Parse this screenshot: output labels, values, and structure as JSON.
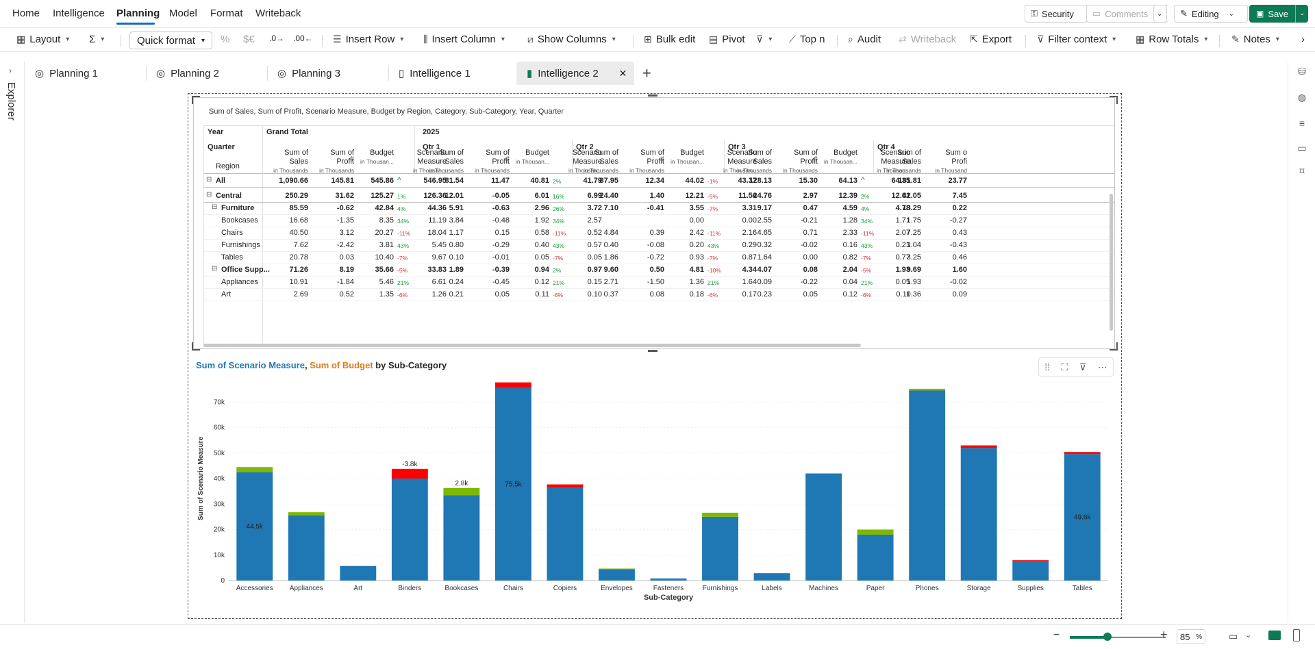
{
  "menu": {
    "items": [
      "Home",
      "Intelligence",
      "Planning",
      "Model",
      "Format",
      "Writeback"
    ],
    "active": "Planning",
    "security": "Security",
    "comments": "Comments",
    "editing": "Editing",
    "save": "Save"
  },
  "toolbar": {
    "layout": "Layout",
    "sigma": "Σ",
    "quick_format": "Quick format",
    "percent": "%",
    "currency": "$€",
    "insert_row": "Insert Row",
    "insert_column": "Insert Column",
    "show_columns": "Show Columns",
    "bulk_edit": "Bulk edit",
    "pivot": "Pivot",
    "top_n": "Top n",
    "audit": "Audit",
    "writeback": "Writeback",
    "export": "Export",
    "filter_context": "Filter context",
    "row_totals": "Row Totals",
    "notes": "Notes"
  },
  "tabs": [
    {
      "label": "Planning 1",
      "icon": "target-icon"
    },
    {
      "label": "Planning 2",
      "icon": "target-icon"
    },
    {
      "label": "Planning 3",
      "icon": "target-icon"
    },
    {
      "label": "Intelligence 1",
      "icon": "document-icon"
    },
    {
      "label": "Intelligence 2",
      "icon": "document-icon",
      "active": true
    }
  ],
  "explorer_label": "Explorer",
  "table": {
    "title": "Sum of Sales, Sum of Profit, Scenario Measure, Budget by Region, Category, Sub-Category, Year, Quarter",
    "year_label": "Year",
    "quarter_label": "Quarter",
    "region_label": "Region",
    "grand_total": "Grand Total",
    "year_value": "2025",
    "quarters": [
      "Qtr 1",
      "Qtr 2",
      "Qtr 3",
      "Qtr 4"
    ],
    "measure_headers": [
      {
        "l1": "Sum of",
        "l2": "Sales",
        "sub": "in Thousands"
      },
      {
        "l1": "Sum of",
        "l2": "Profit",
        "sub": "in Thousands"
      },
      {
        "l1": "",
        "l2": "Budget",
        "sub": "in Thousan..."
      },
      {
        "l1": "Scenario",
        "l2": "Measure",
        "sub": "in Thousan..."
      }
    ],
    "q4_headers": [
      {
        "l1": "Sum of",
        "l2": "Sales",
        "sub": "in Thousands"
      },
      {
        "l1": "Sum o",
        "l2": "Profi",
        "sub": "in Thousand"
      }
    ],
    "rows": [
      {
        "label": "All",
        "level": 0,
        "bold": true,
        "toggle": "⊟",
        "vals": [
          [
            "1,090.66",
            "145.81",
            "545.86",
            "^",
            "546.95"
          ],
          [
            "81.54",
            "11.47",
            "40.81",
            "2%",
            "41.79"
          ],
          [
            "87.95",
            "12.34",
            "44.02",
            "-1%",
            "43.37"
          ],
          [
            "128.13",
            "15.30",
            "64.13",
            "^",
            "64.35"
          ],
          [
            "181.81",
            "23.77"
          ]
        ]
      },
      {
        "label": "Central",
        "level": 0,
        "bold": true,
        "toggle": "⊟",
        "vals": [
          [
            "250.29",
            "31.62",
            "125.27",
            "1%",
            "126.36"
          ],
          [
            "12.01",
            "-0.05",
            "6.01",
            "16%",
            "6.99"
          ],
          [
            "24.40",
            "1.40",
            "12.21",
            "-5%",
            "11.56"
          ],
          [
            "24.76",
            "2.97",
            "12.39",
            "2%",
            "12.61"
          ],
          [
            "42.05",
            "7.45"
          ]
        ]
      },
      {
        "label": "Furniture",
        "level": 1,
        "bold": true,
        "toggle": "⊟",
        "vals": [
          [
            "85.59",
            "-0.62",
            "42.84",
            "4%",
            "44.36"
          ],
          [
            "5.91",
            "-0.63",
            "2.96",
            "26%",
            "3.72"
          ],
          [
            "7.10",
            "-0.41",
            "3.55",
            "-7%",
            "3.31"
          ],
          [
            "9.17",
            "0.47",
            "4.59",
            "4%",
            "4.78"
          ],
          [
            "13.29",
            "0.22"
          ]
        ]
      },
      {
        "label": "Bookcases",
        "level": 2,
        "bold": false,
        "toggle": "",
        "vals": [
          [
            "16.68",
            "-1.35",
            "8.35",
            "34%",
            "11.19"
          ],
          [
            "3.84",
            "-0.48",
            "1.92",
            "34%",
            "2.57"
          ],
          [
            "",
            "",
            "0.00",
            "",
            "0.00"
          ],
          [
            "2.55",
            "-0.21",
            "1.28",
            "34%",
            "1.71"
          ],
          [
            "1.75",
            "-0.27"
          ]
        ]
      },
      {
        "label": "Chairs",
        "level": 2,
        "bold": false,
        "toggle": "",
        "vals": [
          [
            "40.50",
            "3.12",
            "20.27",
            "-11%",
            "18.04"
          ],
          [
            "1.17",
            "0.15",
            "0.58",
            "-11%",
            "0.52"
          ],
          [
            "4.84",
            "0.39",
            "2.42",
            "-11%",
            "2.16"
          ],
          [
            "4.65",
            "0.71",
            "2.33",
            "-11%",
            "2.07"
          ],
          [
            "7.25",
            "0.43"
          ]
        ]
      },
      {
        "label": "Furnishings",
        "level": 2,
        "bold": false,
        "toggle": "",
        "vals": [
          [
            "7.62",
            "-2.42",
            "3.81",
            "43%",
            "5.45"
          ],
          [
            "0.80",
            "-0.29",
            "0.40",
            "43%",
            "0.57"
          ],
          [
            "0.40",
            "-0.08",
            "0.20",
            "43%",
            "0.29"
          ],
          [
            "0.32",
            "-0.02",
            "0.16",
            "43%",
            "0.23"
          ],
          [
            "1.04",
            "-0.43"
          ]
        ]
      },
      {
        "label": "Tables",
        "level": 2,
        "bold": false,
        "toggle": "",
        "vals": [
          [
            "20.78",
            "0.03",
            "10.40",
            "-7%",
            "9.67"
          ],
          [
            "0.10",
            "-0.01",
            "0.05",
            "-7%",
            "0.05"
          ],
          [
            "1.86",
            "-0.72",
            "0.93",
            "-7%",
            "0.87"
          ],
          [
            "1.64",
            "0.00",
            "0.82",
            "-7%",
            "0.77"
          ],
          [
            "3.25",
            "0.46"
          ]
        ]
      },
      {
        "label": "Office Supp...",
        "level": 1,
        "bold": true,
        "toggle": "⊟",
        "vals": [
          [
            "71.26",
            "8.19",
            "35.66",
            "-5%",
            "33.83"
          ],
          [
            "1.89",
            "-0.39",
            "0.94",
            "2%",
            "0.97"
          ],
          [
            "9.60",
            "0.50",
            "4.81",
            "-10%",
            "4.34"
          ],
          [
            "4.07",
            "0.08",
            "2.04",
            "-5%",
            "1.93"
          ],
          [
            "9.69",
            "1.60"
          ]
        ]
      },
      {
        "label": "Appliances",
        "level": 2,
        "bold": false,
        "toggle": "",
        "vals": [
          [
            "10.91",
            "-1.84",
            "5.46",
            "21%",
            "6.61"
          ],
          [
            "0.24",
            "-0.45",
            "0.12",
            "21%",
            "0.15"
          ],
          [
            "2.71",
            "-1.50",
            "1.36",
            "21%",
            "1.64"
          ],
          [
            "0.09",
            "-0.22",
            "0.04",
            "21%",
            "0.05"
          ],
          [
            "1.93",
            "-0.02"
          ]
        ]
      },
      {
        "label": "Art",
        "level": 2,
        "bold": false,
        "toggle": "",
        "vals": [
          [
            "2.69",
            "0.52",
            "1.35",
            "-6%",
            "1.26"
          ],
          [
            "0.21",
            "0.05",
            "0.11",
            "-6%",
            "0.10"
          ],
          [
            "0.37",
            "0.08",
            "0.18",
            "-6%",
            "0.17"
          ],
          [
            "0.23",
            "0.05",
            "0.12",
            "-6%",
            "0.11"
          ],
          [
            "0.36",
            "0.09"
          ]
        ]
      }
    ]
  },
  "chart_data": {
    "type": "bar",
    "title_parts": [
      {
        "text": "Sum of Scenario Measure",
        "color": "#1f77b4"
      },
      {
        "text": ", ",
        "color": "#242424"
      },
      {
        "text": "Sum of Budget",
        "color": "#e07b1a"
      },
      {
        "text": " by Sub-Category",
        "color": "#242424"
      }
    ],
    "xlabel": "Sub-Category",
    "ylabel": "Sum of Scenario Measure",
    "ylim": [
      0,
      80000
    ],
    "yticks": [
      0,
      10000,
      20000,
      30000,
      40000,
      50000,
      60000,
      70000
    ],
    "ytick_labels": [
      "0",
      "10k",
      "20k",
      "30k",
      "40k",
      "50k",
      "60k",
      "70k"
    ],
    "categories": [
      "Accessories",
      "Appliances",
      "Art",
      "Binders",
      "Bookcases",
      "Chairs",
      "Copiers",
      "Envelopes",
      "Fasteners",
      "Furnishings",
      "Labels",
      "Machines",
      "Paper",
      "Phones",
      "Storage",
      "Supplies",
      "Tables"
    ],
    "base": [
      42500,
      25500,
      5700,
      40000,
      33500,
      75500,
      36500,
      4400,
      800,
      25000,
      2900,
      42000,
      18000,
      74500,
      52000,
      7600,
      49600
    ],
    "delta": [
      2000,
      1300,
      0,
      -3800,
      2800,
      -2200,
      -1200,
      300,
      0,
      1600,
      0,
      0,
      2000,
      700,
      -1000,
      -400,
      -800
    ],
    "data_labels": [
      {
        "index": 0,
        "text": "44.5k",
        "pos": "inside"
      },
      {
        "index": 3,
        "text": "-3.8k",
        "pos": "top"
      },
      {
        "index": 4,
        "text": "2.8k",
        "pos": "top"
      },
      {
        "index": 5,
        "text": "75.5k",
        "pos": "inside"
      },
      {
        "index": 16,
        "text": "49.6k",
        "pos": "inside"
      }
    ],
    "colors": {
      "bar": "#1f77b4",
      "increase": "#7fb800",
      "decrease": "#ff0000"
    }
  },
  "status": {
    "zoom": "85",
    "zoom_unit": "%"
  }
}
